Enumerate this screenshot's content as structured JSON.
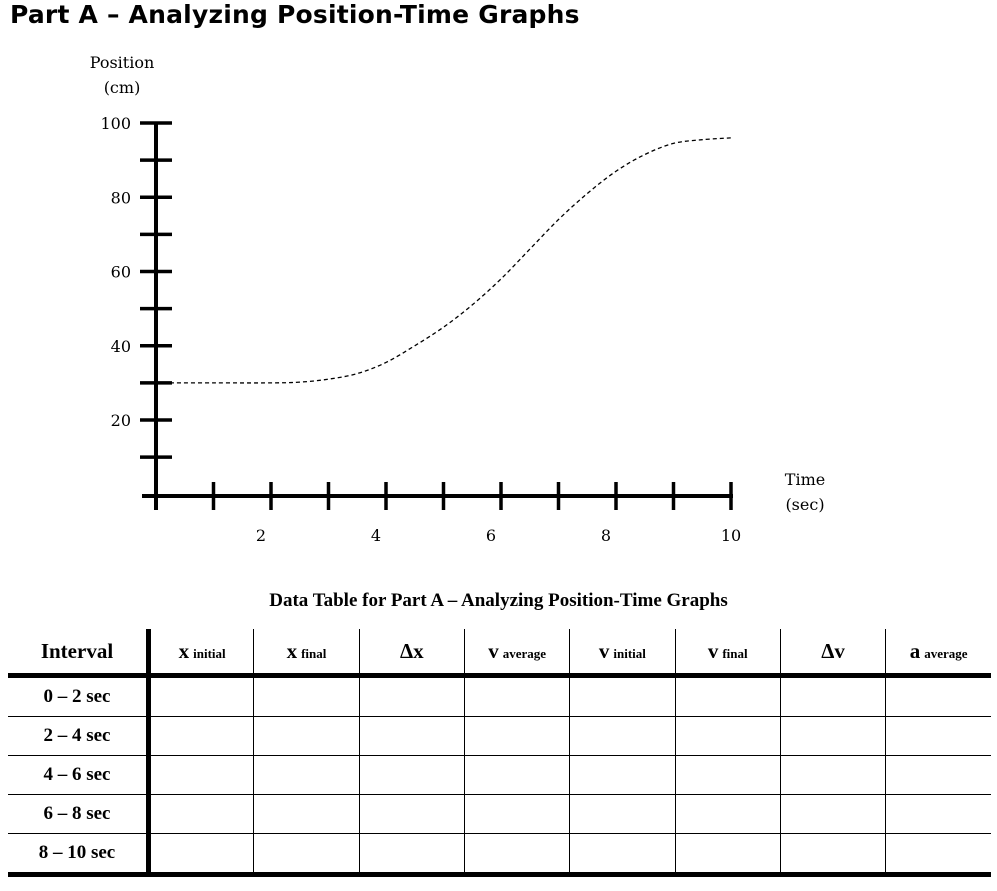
{
  "page": {
    "title": "Part A – Analyzing Position-Time Graphs"
  },
  "chart_data": {
    "type": "line",
    "ylabel_line1": "Position",
    "ylabel_line2": "(cm)",
    "xlabel_line1": "Time",
    "xlabel_line2": "(sec)",
    "x_ticks": [
      2,
      4,
      6,
      8,
      10
    ],
    "y_ticks": [
      20,
      40,
      60,
      80,
      100
    ],
    "xlim": [
      0,
      10
    ],
    "ylim": [
      10,
      100
    ],
    "series": [
      {
        "x": [
          0,
          1,
          2,
          2.5,
          3,
          3.5,
          4,
          4.5,
          5,
          5.5,
          6,
          6.5,
          7,
          7.5,
          8,
          8.5,
          9,
          9.5,
          10
        ],
        "y": [
          30,
          30,
          30,
          30.2,
          31,
          32.5,
          35.5,
          40,
          45,
          51,
          58,
          66,
          74,
          81,
          87,
          91.5,
          94.5,
          95.5,
          96
        ]
      }
    ],
    "line_style": "dashed",
    "grid": false
  },
  "table": {
    "caption": "Data Table for Part A – Analyzing Position-Time Graphs",
    "headers": [
      {
        "main": "Interval",
        "sub": ""
      },
      {
        "main": "x",
        "sub": "initial"
      },
      {
        "main": "x",
        "sub": "final"
      },
      {
        "main": "Δx",
        "sub": ""
      },
      {
        "main": "v",
        "sub": "average"
      },
      {
        "main": "v",
        "sub": "initial"
      },
      {
        "main": "v",
        "sub": "final"
      },
      {
        "main": "Δv",
        "sub": ""
      },
      {
        "main": "a",
        "sub": "average"
      }
    ],
    "rows": [
      [
        "0 – 2 sec",
        "",
        "",
        "",
        "",
        "",
        "",
        "",
        ""
      ],
      [
        "2 – 4 sec",
        "",
        "",
        "",
        "",
        "",
        "",
        "",
        ""
      ],
      [
        "4 – 6 sec",
        "",
        "",
        "",
        "",
        "",
        "",
        "",
        ""
      ],
      [
        "6 – 8 sec",
        "",
        "",
        "",
        "",
        "",
        "",
        "",
        ""
      ],
      [
        "8 – 10 sec",
        "",
        "",
        "",
        "",
        "",
        "",
        "",
        ""
      ]
    ]
  }
}
